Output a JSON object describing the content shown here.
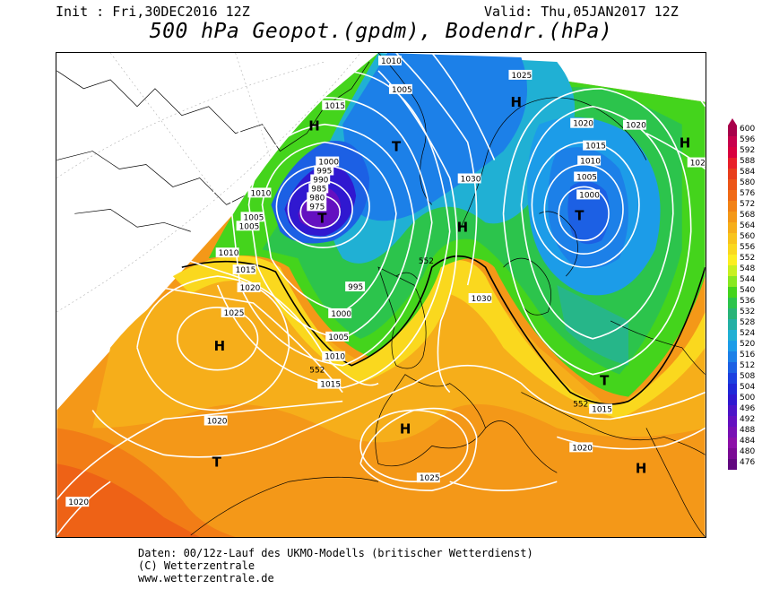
{
  "header": {
    "init": "Init : Fri,30DEC2016 12Z",
    "valid": "Valid: Thu,05JAN2017 12Z",
    "title": "500 hPa Geopot.(gpdm), Bodendr.(hPa)"
  },
  "footer": {
    "line1": "Daten: 00/12z-Lauf des UKMO-Modells (britischer Wetterdienst)",
    "line2": "(C) Wetterzentrale",
    "line3": "www.wetterzentrale.de"
  },
  "legend": {
    "values": [
      "600",
      "596",
      "592",
      "588",
      "584",
      "580",
      "576",
      "572",
      "568",
      "564",
      "560",
      "556",
      "552",
      "548",
      "544",
      "540",
      "536",
      "532",
      "528",
      "524",
      "520",
      "516",
      "512",
      "508",
      "504",
      "500",
      "496",
      "492",
      "488",
      "484",
      "480",
      "476"
    ],
    "colors": [
      "#a8004a",
      "#c8004c",
      "#d9003f",
      "#e8202a",
      "#e83e1c",
      "#ec5518",
      "#f06a16",
      "#f28216",
      "#f49818",
      "#f6ae1a",
      "#f8c41c",
      "#fad81e",
      "#fcee20",
      "#c8f020",
      "#88e820",
      "#44d41c",
      "#2cc44c",
      "#28b478",
      "#24b0a4",
      "#20b0d4",
      "#1c9ce8",
      "#1c80e8",
      "#1c60e4",
      "#1c40e0",
      "#2028d8",
      "#3018d0",
      "#4c14c8",
      "#6410c0",
      "#7810b4",
      "#8c10a8",
      "#7a0a94",
      "#620880"
    ]
  },
  "map_labels": {
    "highs": [
      "H",
      "H",
      "H",
      "H",
      "H",
      "H",
      "H"
    ],
    "lows": [
      "T",
      "T",
      "T",
      "T",
      "T"
    ],
    "isobars": [
      "1010",
      "1005",
      "1015",
      "1025",
      "1020",
      "1015",
      "1010",
      "1005",
      "1000",
      "1000",
      "995",
      "990",
      "985",
      "980",
      "975",
      "1010",
      "1005",
      "1005",
      "1010",
      "1015",
      "1020",
      "1025",
      "1020",
      "1020",
      "995",
      "1000",
      "1005",
      "1010",
      "1015",
      "1030",
      "1030",
      "1015",
      "1020",
      "1025",
      "1020",
      "102"
    ],
    "contours_552": [
      "552",
      "552",
      "552"
    ]
  }
}
